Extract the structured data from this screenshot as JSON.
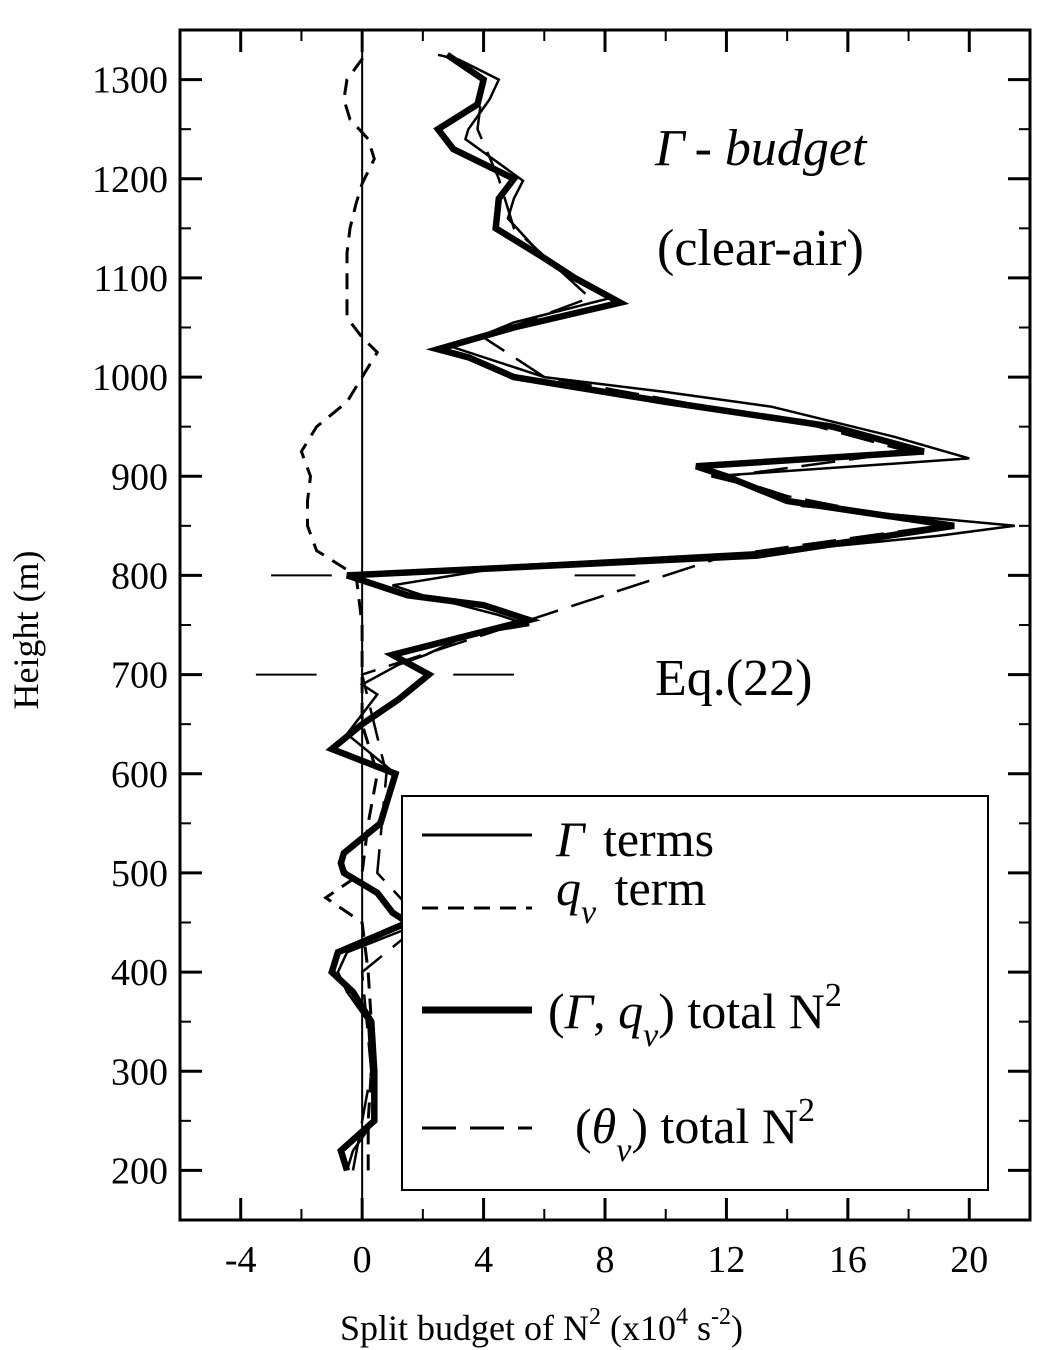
{
  "chart_data": {
    "type": "line",
    "xlabel_parts": {
      "main": "Split budget of N",
      "sup1": "2",
      "mid": " (x10",
      "sup2": "4",
      "mid2": " s",
      "sup3": "-2",
      "end": ")"
    },
    "ylabel": "Height (m)",
    "xlim": [
      -6,
      22
    ],
    "ylim": [
      150,
      1350
    ],
    "xticks": [
      -4,
      0,
      4,
      8,
      12,
      16,
      20
    ],
    "xtick_labels": [
      "-4",
      "0",
      "4",
      "8",
      "12",
      "16",
      "20"
    ],
    "yticks": [
      200,
      300,
      400,
      500,
      600,
      700,
      800,
      900,
      1000,
      1100,
      1200,
      1300
    ],
    "ytick_labels": [
      "200",
      "300",
      "400",
      "500",
      "600",
      "700",
      "800",
      "900",
      "1000",
      "1100",
      "1200",
      "1300"
    ],
    "annotations": {
      "title_symbol": "Γ",
      "title_rest": "- budget",
      "subtitle": "(clear-air)",
      "equation": "Eq.(22)"
    },
    "legend": {
      "placement": "bottom-right",
      "entries": [
        {
          "sym": "Γ",
          "text": " terms"
        },
        {
          "sym": "q",
          "sub": "v",
          "text": " term"
        },
        {
          "pre": "(",
          "sym": "Γ",
          "mid": ", ",
          "sym2": "q",
          "sub": "v",
          "post": ") total N",
          "sup": "2"
        },
        {
          "pre": "(",
          "sym": "θ",
          "sub": "v",
          "post": ") total N",
          "sup": "2"
        }
      ]
    },
    "series": [
      {
        "key": "gamma_terms",
        "style": "thin-solid",
        "points": [
          [
            -0.5,
            200
          ],
          [
            -0.3,
            220
          ],
          [
            0.4,
            250
          ],
          [
            0.3,
            300
          ],
          [
            0.2,
            350
          ],
          [
            -0.5,
            380
          ],
          [
            -0.8,
            400
          ],
          [
            -0.5,
            420
          ],
          [
            2,
            450
          ],
          [
            1,
            460
          ],
          [
            0.5,
            480
          ],
          [
            -0.5,
            500
          ],
          [
            -0.7,
            510
          ],
          [
            -0.6,
            520
          ],
          [
            0.6,
            550
          ],
          [
            0.8,
            570
          ],
          [
            1.1,
            600
          ],
          [
            -0.5,
            640
          ],
          [
            0.5,
            680
          ],
          [
            0,
            690
          ],
          [
            1.2,
            710
          ],
          [
            2.1,
            720
          ],
          [
            3.5,
            740
          ],
          [
            5.5,
            750
          ],
          [
            4.5,
            760
          ],
          [
            2,
            780
          ],
          [
            1,
            790
          ],
          [
            5,
            810
          ],
          [
            14,
            825
          ],
          [
            19,
            840
          ],
          [
            21.5,
            850
          ],
          [
            14.5,
            870
          ],
          [
            13.5,
            885
          ],
          [
            11.5,
            900
          ],
          [
            20,
            918
          ],
          [
            17.5,
            940
          ],
          [
            13.5,
            970
          ],
          [
            10,
            985
          ],
          [
            6,
            1000
          ],
          [
            3,
            1030
          ],
          [
            5,
            1055
          ],
          [
            8.2,
            1080
          ],
          [
            7,
            1100
          ],
          [
            6,
            1120
          ],
          [
            4.8,
            1160
          ],
          [
            5,
            1180
          ],
          [
            5.3,
            1198
          ],
          [
            3.4,
            1240
          ],
          [
            3.5,
            1250
          ],
          [
            4.2,
            1280
          ],
          [
            4.5,
            1300
          ],
          [
            3.2,
            1320
          ],
          [
            2.5,
            1325
          ]
        ]
      },
      {
        "key": "qv_term",
        "style": "short-dash",
        "points": [
          [
            0.2,
            200
          ],
          [
            0.2,
            250
          ],
          [
            0.3,
            300
          ],
          [
            0.3,
            350
          ],
          [
            0.2,
            400
          ],
          [
            0,
            450
          ],
          [
            -1.2,
            475
          ],
          [
            0,
            500
          ],
          [
            0.2,
            550
          ],
          [
            0.5,
            600
          ],
          [
            0,
            650
          ],
          [
            0,
            700
          ],
          [
            0,
            750
          ],
          [
            -0.2,
            800
          ],
          [
            -1.5,
            825
          ],
          [
            -1.8,
            850
          ],
          [
            -1.8,
            875
          ],
          [
            -1.7,
            900
          ],
          [
            -2,
            925
          ],
          [
            -1.5,
            950
          ],
          [
            -0.5,
            975
          ],
          [
            0,
            1000
          ],
          [
            0.5,
            1025
          ],
          [
            0,
            1040
          ],
          [
            -0.5,
            1060
          ],
          [
            -0.5,
            1080
          ],
          [
            -0.5,
            1100
          ],
          [
            -0.5,
            1125
          ],
          [
            -0.4,
            1150
          ],
          [
            -0.2,
            1175
          ],
          [
            0,
            1195
          ],
          [
            0.4,
            1220
          ],
          [
            0.2,
            1240
          ],
          [
            -0.4,
            1260
          ],
          [
            -0.6,
            1280
          ],
          [
            -0.5,
            1300
          ],
          [
            0.1,
            1325
          ]
        ]
      },
      {
        "key": "gamma_qv_total",
        "style": "thick-solid",
        "points": [
          [
            -0.5,
            200
          ],
          [
            -0.7,
            220
          ],
          [
            0.4,
            250
          ],
          [
            0.4,
            300
          ],
          [
            0.3,
            350
          ],
          [
            -0.3,
            380
          ],
          [
            -1,
            400
          ],
          [
            -0.8,
            420
          ],
          [
            1.5,
            450
          ],
          [
            1,
            460
          ],
          [
            0.5,
            480
          ],
          [
            -0.6,
            500
          ],
          [
            -0.7,
            510
          ],
          [
            -0.6,
            520
          ],
          [
            0.6,
            550
          ],
          [
            0.8,
            570
          ],
          [
            1.1,
            600
          ],
          [
            -1,
            625
          ],
          [
            0,
            650
          ],
          [
            1.2,
            675
          ],
          [
            2.2,
            700
          ],
          [
            1,
            720
          ],
          [
            5.5,
            755
          ],
          [
            4,
            770
          ],
          [
            1.5,
            780
          ],
          [
            -0.5,
            800
          ],
          [
            13,
            820
          ],
          [
            19.5,
            850
          ],
          [
            14,
            875
          ],
          [
            12,
            900
          ],
          [
            11,
            910
          ],
          [
            18.5,
            925
          ],
          [
            15.5,
            950
          ],
          [
            10,
            975
          ],
          [
            5,
            1000
          ],
          [
            3.5,
            1020
          ],
          [
            2.5,
            1028
          ],
          [
            5,
            1050
          ],
          [
            8.5,
            1075
          ],
          [
            7,
            1100
          ],
          [
            6,
            1120
          ],
          [
            4.4,
            1150
          ],
          [
            4.5,
            1180
          ],
          [
            5,
            1200
          ],
          [
            3,
            1230
          ],
          [
            2.5,
            1250
          ],
          [
            3.8,
            1275
          ],
          [
            4,
            1300
          ],
          [
            2.8,
            1325
          ]
        ]
      },
      {
        "key": "theta_v_total",
        "style": "long-dash",
        "points": [
          [
            -0.3,
            200
          ],
          [
            0.3,
            300
          ],
          [
            0,
            400
          ],
          [
            2,
            450
          ],
          [
            0.5,
            500
          ],
          [
            0.8,
            600
          ],
          [
            0,
            700
          ],
          [
            5,
            750
          ],
          [
            12,
            820
          ],
          [
            19,
            850
          ],
          [
            14,
            880
          ],
          [
            12,
            900
          ],
          [
            18,
            925
          ],
          [
            15,
            950
          ],
          [
            6,
            1000
          ],
          [
            4,
            1040
          ],
          [
            7.5,
            1080
          ],
          [
            5,
            1150
          ],
          [
            4.5,
            1200
          ],
          [
            3.8,
            1250
          ],
          [
            4,
            1300
          ],
          [
            2.8,
            1325
          ]
        ]
      }
    ],
    "reference_dashes": [
      {
        "y": 800,
        "x_ranges": [
          [
            -3,
            -1
          ],
          [
            7,
            9
          ]
        ]
      },
      {
        "y": 700,
        "x_ranges": [
          [
            -3.5,
            -1.5
          ],
          [
            3,
            5
          ]
        ]
      }
    ],
    "grid": false
  }
}
